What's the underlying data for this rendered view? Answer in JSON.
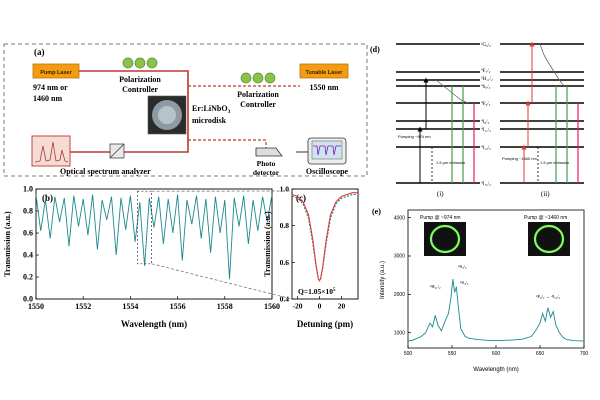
{
  "panel_a": {
    "label": "(a)",
    "pump_laser": "Pump Laser",
    "pump_wavelength_line1": "974 nm or",
    "pump_wavelength_line2": "1460 nm",
    "polarization_controller_left": "Polarization",
    "polarization_controller_left_2": "Controller",
    "polarization_controller_right": "Polarization",
    "polarization_controller_right_2": "Controller",
    "tunable_laser": "Tunable Laser",
    "tunable_wavelength": "1550 nm",
    "microdisk_line1": "Er:LiNbO",
    "microdisk_sub": "3",
    "microdisk_line2": "microdisk",
    "osa": "Optical spectrum analyzer",
    "photo_detector_1": "Photo",
    "photo_detector_2": "detector",
    "oscilloscope": "Oscilloscope",
    "colors": {
      "accent_red": "#c0392b",
      "laser_fill": "#f39c12",
      "pc_green": "#8bc34a"
    }
  },
  "chart_data": [
    {
      "id": "b",
      "type": "line",
      "label": "(b)",
      "xlabel": "Wavelength (nm)",
      "ylabel": "Transmission (a.u.)",
      "xlim": [
        1550,
        1560
      ],
      "ylim": [
        0.0,
        1.0
      ],
      "xticks": [
        1550,
        1552,
        1554,
        1556,
        1558,
        1560
      ],
      "yticks": [
        0.0,
        0.2,
        0.4,
        0.6,
        0.8,
        1.0
      ],
      "series": [
        {
          "name": "transmission",
          "color": "#1b8a8f",
          "x": [
            1550.0,
            1550.2,
            1550.4,
            1550.6,
            1550.8,
            1551.0,
            1551.2,
            1551.4,
            1551.6,
            1551.8,
            1552.0,
            1552.2,
            1552.4,
            1552.6,
            1552.8,
            1553.0,
            1553.2,
            1553.4,
            1553.6,
            1553.8,
            1554.0,
            1554.2,
            1554.4,
            1554.6,
            1554.8,
            1555.0,
            1555.2,
            1555.4,
            1555.6,
            1555.8,
            1556.0,
            1556.2,
            1556.4,
            1556.6,
            1556.8,
            1557.0,
            1557.2,
            1557.4,
            1557.6,
            1557.8,
            1558.0,
            1558.2,
            1558.4,
            1558.6,
            1558.8,
            1559.0,
            1559.2,
            1559.4,
            1559.6,
            1559.8,
            1560.0
          ],
          "y": [
            0.95,
            0.62,
            0.9,
            0.55,
            0.93,
            0.7,
            0.92,
            0.48,
            0.94,
            0.66,
            0.91,
            0.58,
            0.95,
            0.45,
            0.9,
            0.72,
            0.93,
            0.4,
            0.92,
            0.63,
            0.94,
            0.52,
            0.88,
            0.3,
            0.92,
            0.65,
            0.93,
            0.5,
            0.91,
            0.6,
            0.95,
            0.35,
            0.9,
            0.68,
            0.94,
            0.55,
            0.91,
            0.42,
            0.93,
            0.6,
            0.9,
            0.18,
            0.92,
            0.66,
            0.94,
            0.5,
            0.9,
            0.62,
            0.93,
            0.7,
            0.95
          ]
        }
      ],
      "zoom_box": {
        "x": [
          1554.3,
          1554.9
        ],
        "y": [
          0.32,
          0.98
        ]
      }
    },
    {
      "id": "c",
      "type": "line",
      "label": "(c)",
      "xlabel": "Detuning (pm)",
      "ylabel": "Transmission (a.u.)",
      "xlim": [
        -25,
        35
      ],
      "ylim": [
        0.4,
        1.0
      ],
      "xticks": [
        -20,
        0,
        20
      ],
      "yticks": [
        0.4,
        0.6,
        0.8,
        1.0
      ],
      "annotation": "Q=1.05×10",
      "annotation_sup": "5",
      "series": [
        {
          "name": "measured",
          "color": "#1b8a8f",
          "x": [
            -25,
            -20,
            -15,
            -10,
            -6,
            -3,
            -1,
            0,
            1,
            3,
            6,
            10,
            15,
            20,
            25,
            30,
            35
          ],
          "y": [
            0.96,
            0.95,
            0.92,
            0.84,
            0.7,
            0.57,
            0.51,
            0.5,
            0.51,
            0.57,
            0.7,
            0.84,
            0.92,
            0.95,
            0.96,
            0.97,
            0.97
          ]
        },
        {
          "name": "lorentzian fit",
          "color": "#e53935",
          "x": [
            -25,
            -20,
            -15,
            -10,
            -6,
            -3,
            -1,
            0,
            1,
            3,
            6,
            10,
            15,
            20,
            25,
            30,
            35
          ],
          "y": [
            0.97,
            0.96,
            0.93,
            0.86,
            0.72,
            0.58,
            0.51,
            0.5,
            0.51,
            0.58,
            0.72,
            0.86,
            0.93,
            0.96,
            0.97,
            0.98,
            0.98
          ]
        }
      ]
    },
    {
      "id": "e",
      "type": "line",
      "label": "(e)",
      "xlabel": "Wavelength (nm)",
      "ylabel": "Intensity (a.u.)",
      "xlim": [
        500,
        700
      ],
      "ylim": [
        600,
        4200
      ],
      "xticks": [
        500,
        550,
        600,
        650,
        700
      ],
      "yticks": [
        1000,
        2000,
        3000,
        4000
      ],
      "inset_left_label": "Pump @ ~974 nm",
      "inset_right_label": "Pump @ ~1460 nm",
      "peak_labels": [
        "²H₁₁/₂",
        "⁴S₃/₂",
        "⁴S₃/₂",
        "⁴F₉/₂ → ⁴I₁₅/₂"
      ],
      "series": [
        {
          "name": "emission",
          "color": "#1b8a8f",
          "x": [
            500,
            505,
            510,
            515,
            520,
            525,
            528,
            531,
            534,
            538,
            542,
            546,
            549,
            551,
            553,
            555,
            557,
            560,
            565,
            570,
            580,
            590,
            600,
            610,
            620,
            630,
            640,
            645,
            650,
            653,
            656,
            659,
            662,
            665,
            668,
            672,
            676,
            680,
            690,
            700
          ],
          "y": [
            780,
            800,
            850,
            900,
            1000,
            1250,
            1150,
            1450,
            1200,
            1050,
            1300,
            1500,
            1950,
            2400,
            2050,
            2200,
            1700,
            1100,
            900,
            850,
            820,
            800,
            790,
            800,
            810,
            830,
            900,
            1050,
            1250,
            1500,
            1300,
            1650,
            1400,
            1550,
            1200,
            1000,
            880,
            820,
            790,
            780
          ]
        }
      ]
    }
  ],
  "panel_d": {
    "label": "(d)",
    "levels": [
      "⁴I₁₅/₂",
      "⁴I₁₃/₂",
      "⁴I₁₁/₂",
      "⁴I₉/₂",
      "⁴F₉/₂",
      "⁴S₃/₂",
      "²H₁₁/₂",
      "⁴F₇/₂",
      "²G₉/₂"
    ],
    "left_caption": "(i)",
    "right_caption": "(ii)",
    "left_pump_note": "Pumping ~974 nm",
    "right_pump_note": "Pumping ~1460 nm",
    "left_energy_note": "1.5 μm emission",
    "right_energy_note": "1.5 μm emission"
  }
}
